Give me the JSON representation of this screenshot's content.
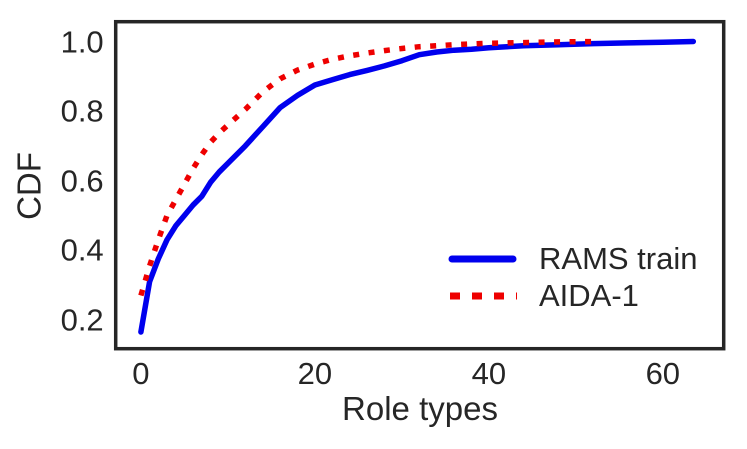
{
  "figure": {
    "background": "#ffffff",
    "text_color": "#262626",
    "spine_color": "#262626"
  },
  "chart_data": {
    "type": "line",
    "title": "",
    "xlabel": "Role types",
    "ylabel": "CDF",
    "xlim": [
      -2.9,
      67.0
    ],
    "ylim": [
      0.117,
      1.057
    ],
    "xticks": [
      0,
      20,
      40,
      60
    ],
    "xtick_labels": [
      "0",
      "20",
      "40",
      "60"
    ],
    "yticks": [
      0.2,
      0.4,
      0.6,
      0.8,
      1.0
    ],
    "ytick_labels": [
      "0.2",
      "0.4",
      "0.6",
      "0.8",
      "1.0"
    ],
    "grid": false,
    "legend_position": "lower right",
    "series": [
      {
        "name": "RAMS train",
        "color": "#0000ee",
        "style": "solid",
        "x": [
          0,
          1,
          2,
          3,
          4,
          5,
          6,
          7,
          8,
          9,
          10,
          12,
          14,
          16,
          18,
          20,
          22,
          24,
          26,
          28,
          30,
          32,
          34,
          36,
          38,
          40,
          44,
          48,
          52,
          56,
          60,
          63.5
        ],
        "y": [
          0.165,
          0.31,
          0.375,
          0.43,
          0.47,
          0.5,
          0.53,
          0.555,
          0.595,
          0.625,
          0.65,
          0.7,
          0.755,
          0.81,
          0.845,
          0.875,
          0.89,
          0.905,
          0.917,
          0.93,
          0.945,
          0.962,
          0.97,
          0.975,
          0.978,
          0.982,
          0.988,
          0.991,
          0.994,
          0.996,
          0.998,
          1.0
        ]
      },
      {
        "name": "AIDA-1",
        "color": "#ee0000",
        "style": "dotted",
        "x": [
          0,
          1,
          2,
          3,
          4,
          5,
          6,
          7,
          8,
          9,
          10,
          12,
          14,
          16,
          18,
          20,
          22,
          24,
          26,
          28,
          30,
          32,
          34,
          36,
          38,
          40,
          44,
          48,
          52.5
        ],
        "y": [
          0.27,
          0.355,
          0.43,
          0.5,
          0.545,
          0.59,
          0.635,
          0.675,
          0.71,
          0.737,
          0.76,
          0.805,
          0.855,
          0.893,
          0.918,
          0.935,
          0.949,
          0.959,
          0.967,
          0.974,
          0.98,
          0.985,
          0.988,
          0.991,
          0.993,
          0.995,
          0.997,
          0.999,
          1.0
        ]
      }
    ]
  }
}
